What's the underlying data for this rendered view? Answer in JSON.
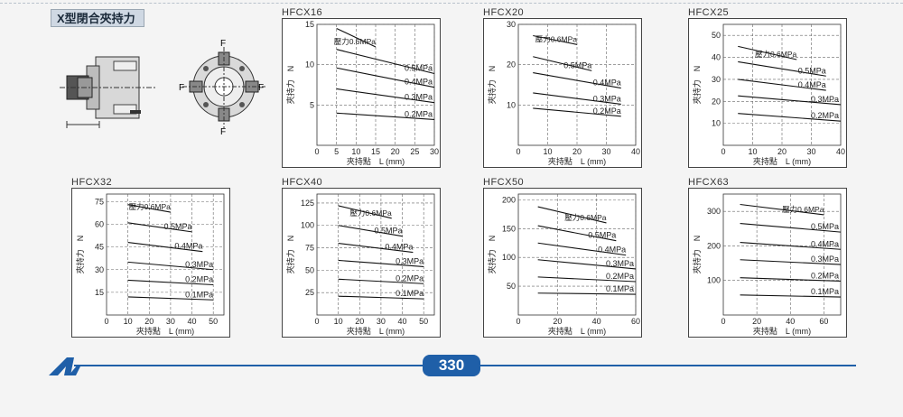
{
  "section_title": "X型閉合夾持力",
  "page_number": "330",
  "force_label": "F",
  "axis": {
    "y_label": "夾持力　N",
    "x_label": "夾持點　L (mm)"
  },
  "chart_data": [
    {
      "title": "HFCX16",
      "type": "line",
      "xlim": [
        0,
        30
      ],
      "ylim": [
        0,
        15
      ],
      "xticks": [
        0,
        5,
        10,
        15,
        20,
        25,
        30
      ],
      "yticks": [
        5,
        10,
        15
      ],
      "series": [
        {
          "name": "壓力0.6MPa",
          "x": [
            5,
            15
          ],
          "y": [
            14.5,
            12.2
          ]
        },
        {
          "name": "0.5MPa",
          "x": [
            5,
            30
          ],
          "y": [
            11.9,
            8.9
          ]
        },
        {
          "name": "0.4MPa",
          "x": [
            5,
            30
          ],
          "y": [
            9.6,
            7.2
          ]
        },
        {
          "name": "0.3MPa",
          "x": [
            5,
            30
          ],
          "y": [
            7.0,
            5.3
          ]
        },
        {
          "name": "0.2MPa",
          "x": [
            5,
            30
          ],
          "y": [
            4.0,
            3.2
          ]
        }
      ]
    },
    {
      "title": "HFCX20",
      "type": "line",
      "xlim": [
        0,
        40
      ],
      "ylim": [
        0,
        30
      ],
      "xticks": [
        0,
        10,
        20,
        30,
        40
      ],
      "yticks": [
        10,
        20,
        30
      ],
      "series": [
        {
          "name": "壓力0.6MPa",
          "x": [
            5,
            20
          ],
          "y": [
            27.2,
            25.0
          ]
        },
        {
          "name": "0.5MPa",
          "x": [
            5,
            25
          ],
          "y": [
            22.0,
            18.5
          ]
        },
        {
          "name": "0.4MPa",
          "x": [
            5,
            35
          ],
          "y": [
            18.0,
            14.2
          ]
        },
        {
          "name": "0.3MPa",
          "x": [
            5,
            35
          ],
          "y": [
            13.0,
            10.2
          ]
        },
        {
          "name": "0.2MPa",
          "x": [
            5,
            35
          ],
          "y": [
            9.2,
            7.2
          ]
        }
      ]
    },
    {
      "title": "HFCX25",
      "type": "line",
      "xlim": [
        0,
        40
      ],
      "ylim": [
        0,
        55
      ],
      "xticks": [
        0,
        10,
        20,
        30,
        40
      ],
      "yticks": [
        10,
        20,
        30,
        40,
        50
      ],
      "series": [
        {
          "name": "壓力0.6MPa",
          "x": [
            5,
            25
          ],
          "y": [
            45.0,
            39.0
          ]
        },
        {
          "name": "0.5MPa",
          "x": [
            5,
            35
          ],
          "y": [
            38.0,
            31.5
          ]
        },
        {
          "name": "0.4MPa",
          "x": [
            5,
            35
          ],
          "y": [
            30.0,
            25.0
          ]
        },
        {
          "name": "0.3MPa",
          "x": [
            5,
            40
          ],
          "y": [
            22.5,
            18.5
          ]
        },
        {
          "name": "0.2MPa",
          "x": [
            5,
            40
          ],
          "y": [
            14.5,
            11.0
          ]
        }
      ]
    },
    {
      "title": "HFCX32",
      "type": "line",
      "xlim": [
        0,
        55
      ],
      "ylim": [
        0,
        80
      ],
      "xticks": [
        0,
        10,
        20,
        30,
        40,
        50
      ],
      "yticks": [
        15,
        30,
        45,
        60,
        75
      ],
      "series": [
        {
          "name": "壓力0.6MPa",
          "x": [
            10,
            30
          ],
          "y": [
            73.0,
            68.0
          ]
        },
        {
          "name": "0.5MPa",
          "x": [
            10,
            40
          ],
          "y": [
            61.0,
            55.0
          ]
        },
        {
          "name": "0.4MPa",
          "x": [
            10,
            45
          ],
          "y": [
            48.0,
            42.0
          ]
        },
        {
          "name": "0.3MPa",
          "x": [
            10,
            50
          ],
          "y": [
            35.0,
            30.0
          ]
        },
        {
          "name": "0.2MPa",
          "x": [
            10,
            50
          ],
          "y": [
            23.0,
            20.0
          ]
        },
        {
          "name": "0.1MPa",
          "x": [
            10,
            50
          ],
          "y": [
            12.0,
            10.0
          ]
        }
      ]
    },
    {
      "title": "HFCX40",
      "type": "line",
      "xlim": [
        0,
        55
      ],
      "ylim": [
        0,
        135
      ],
      "xticks": [
        0,
        10,
        20,
        30,
        40,
        50
      ],
      "yticks": [
        25,
        50,
        75,
        100,
        125
      ],
      "series": [
        {
          "name": "壓力0.6MPa",
          "x": [
            10,
            35
          ],
          "y": [
            122.0,
            108.0
          ]
        },
        {
          "name": "0.5MPa",
          "x": [
            10,
            40
          ],
          "y": [
            100.0,
            88.0
          ]
        },
        {
          "name": "0.4MPa",
          "x": [
            10,
            45
          ],
          "y": [
            80.0,
            70.0
          ]
        },
        {
          "name": "0.3MPa",
          "x": [
            10,
            50
          ],
          "y": [
            61.0,
            54.0
          ]
        },
        {
          "name": "0.2MPa",
          "x": [
            10,
            50
          ],
          "y": [
            40.0,
            35.0
          ]
        },
        {
          "name": "0.1MPa",
          "x": [
            10,
            50
          ],
          "y": [
            21.0,
            18.0
          ]
        }
      ]
    },
    {
      "title": "HFCX50",
      "type": "line",
      "xlim": [
        0,
        60
      ],
      "ylim": [
        0,
        210
      ],
      "xticks": [
        0,
        20,
        40,
        60
      ],
      "yticks": [
        50,
        100,
        150,
        200
      ],
      "series": [
        {
          "name": "壓力0.6MPa",
          "x": [
            10,
            45
          ],
          "y": [
            188.0,
            160.0
          ]
        },
        {
          "name": "0.5MPa",
          "x": [
            10,
            50
          ],
          "y": [
            155.0,
            129.0
          ]
        },
        {
          "name": "0.4MPa",
          "x": [
            10,
            55
          ],
          "y": [
            125.0,
            104.0
          ]
        },
        {
          "name": "0.3MPa",
          "x": [
            10,
            60
          ],
          "y": [
            96.0,
            80.0
          ]
        },
        {
          "name": "0.2MPa",
          "x": [
            10,
            60
          ],
          "y": [
            66.0,
            58.0
          ]
        },
        {
          "name": "0.1MPa",
          "x": [
            10,
            60
          ],
          "y": [
            38.0,
            36.0
          ]
        }
      ]
    },
    {
      "title": "HFCX63",
      "type": "line",
      "xlim": [
        0,
        70
      ],
      "ylim": [
        0,
        350
      ],
      "xticks": [
        0,
        20,
        40,
        60
      ],
      "yticks": [
        100,
        200,
        300
      ],
      "series": [
        {
          "name": "壓力0.6MPa",
          "x": [
            10,
            60
          ],
          "y": [
            320.0,
            290.0
          ]
        },
        {
          "name": "0.5MPa",
          "x": [
            10,
            70
          ],
          "y": [
            265.0,
            240.0
          ]
        },
        {
          "name": "0.4MPa",
          "x": [
            10,
            70
          ],
          "y": [
            210.0,
            190.0
          ]
        },
        {
          "name": "0.3MPa",
          "x": [
            10,
            70
          ],
          "y": [
            160.0,
            146.0
          ]
        },
        {
          "name": "0.2MPa",
          "x": [
            10,
            70
          ],
          "y": [
            108.0,
            98.0
          ]
        },
        {
          "name": "0.1MPa",
          "x": [
            10,
            70
          ],
          "y": [
            58.0,
            52.0
          ]
        }
      ]
    }
  ]
}
